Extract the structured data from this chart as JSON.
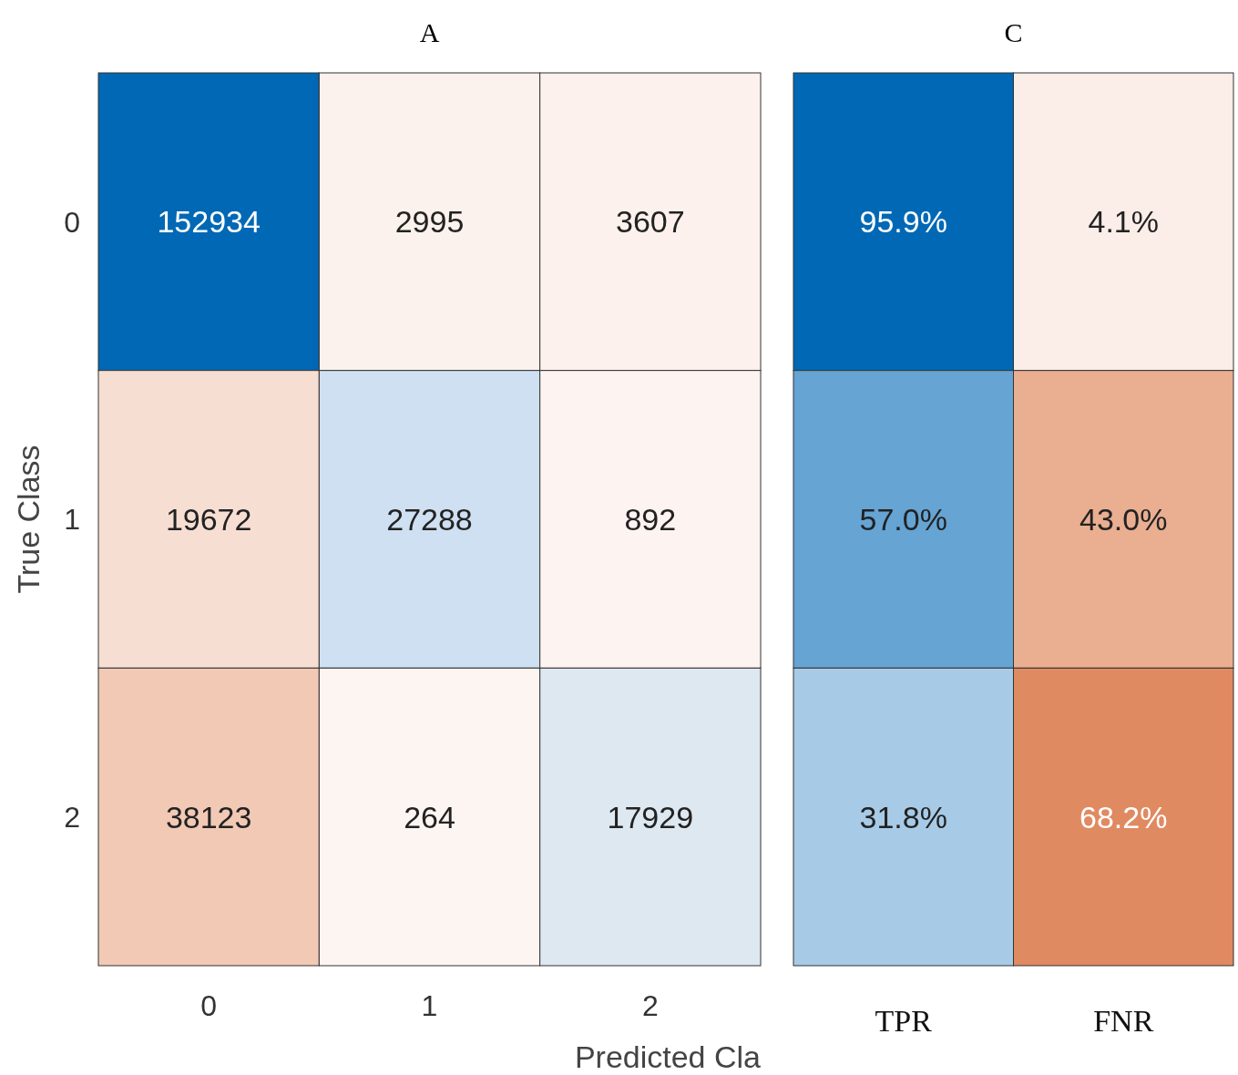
{
  "chart_data": [
    {
      "type": "heatmap",
      "title": "A",
      "xlabel": "Predicted Cla",
      "ylabel": "True Class",
      "categories": [
        "0",
        "1",
        "2"
      ],
      "y_categories": [
        "0",
        "1",
        "2"
      ],
      "cells": [
        [
          152934,
          2995,
          3607
        ],
        [
          19672,
          27288,
          892
        ],
        [
          38123,
          264,
          17929
        ]
      ],
      "data_labels": true
    },
    {
      "type": "heatmap",
      "title": "C",
      "categories": [
        "TPR",
        "FNR"
      ],
      "y_categories": [
        "0",
        "1",
        "2"
      ],
      "tick_labels": "x",
      "cells": [
        [
          95.9,
          4.1
        ],
        [
          57.0,
          43.0
        ],
        [
          31.8,
          68.2
        ]
      ],
      "cell_labels": [
        [
          "95.9%",
          "4.1%"
        ],
        [
          "57.0%",
          "43.0%"
        ],
        [
          "31.8%",
          "68.2%"
        ]
      ]
    }
  ]
}
